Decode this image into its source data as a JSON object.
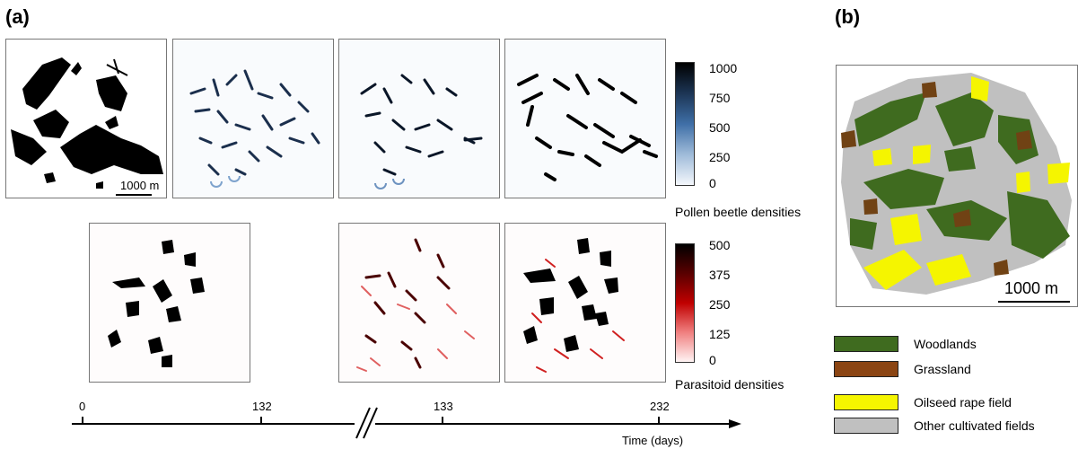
{
  "panels": {
    "a": "(a)",
    "b": "(b)"
  },
  "scale_label": "1000 m",
  "colorbars": {
    "pollen": {
      "title": "Pollen beetle densities",
      "ticks": [
        "1000",
        "750",
        "500",
        "250",
        "0"
      ]
    },
    "parasitoid": {
      "title": "Parasitoid densities",
      "ticks": [
        "500",
        "375",
        "250",
        "125",
        "0"
      ]
    }
  },
  "timeline": {
    "ticks": [
      "0",
      "132",
      "133",
      "232"
    ],
    "axis_label": "Time (days)"
  },
  "legend": [
    {
      "label": "Woodlands",
      "color": "#3f6b1f"
    },
    {
      "label": "Grassland",
      "color": "#8b4513"
    },
    {
      "label": "Oilseed rape field",
      "color": "#f5f500"
    },
    {
      "label": "Other cultivated fields",
      "color": "#c0c0c0"
    }
  ]
}
